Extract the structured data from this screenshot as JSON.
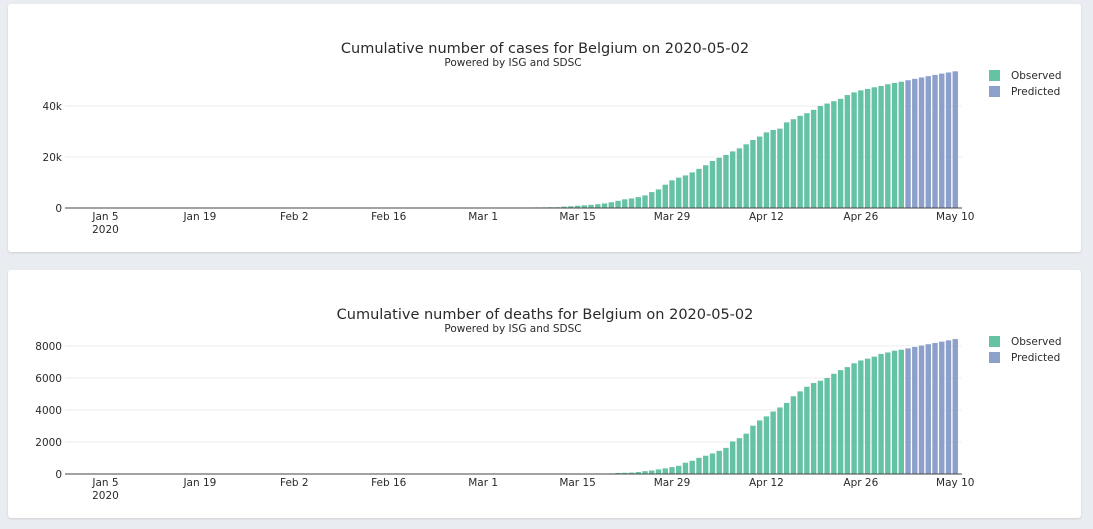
{
  "colors": {
    "observed": "#66c2a5",
    "predicted": "#8da0cb",
    "grid": "#eeeeee",
    "axis": "#444444"
  },
  "charts": [
    {
      "id": "cases",
      "title": "Cumulative number of cases for Belgium on 2020-05-02",
      "subtitle": "Powered by ISG and SDSC",
      "legend": [
        "Observed",
        "Predicted"
      ],
      "yticks": [
        {
          "v": 0,
          "label": "0"
        },
        {
          "v": 20000,
          "label": "20k"
        },
        {
          "v": 40000,
          "label": "40k"
        }
      ],
      "ylim": [
        0,
        54900
      ]
    },
    {
      "id": "deaths",
      "title": "Cumulative number of deaths for Belgium on 2020-05-02",
      "subtitle": "Powered by ISG and SDSC",
      "legend": [
        "Observed",
        "Predicted"
      ],
      "yticks": [
        {
          "v": 0,
          "label": "0"
        },
        {
          "v": 2000,
          "label": "2000"
        },
        {
          "v": 4000,
          "label": "4000"
        },
        {
          "v": 6000,
          "label": "6000"
        },
        {
          "v": 8000,
          "label": "8000"
        }
      ],
      "ylim": [
        0,
        8560
      ]
    }
  ],
  "chart_data": [
    {
      "type": "bar",
      "title": "Cumulative number of cases for Belgium on 2020-05-02",
      "subtitle": "Powered by ISG and SDSC",
      "xlim": [
        "2019-12-30",
        "2020-05-11"
      ],
      "xticks": [
        {
          "date": "2020-01-05",
          "label": "Jan 5",
          "sub": "2020"
        },
        {
          "date": "2020-01-19",
          "label": "Jan 19"
        },
        {
          "date": "2020-02-02",
          "label": "Feb 2"
        },
        {
          "date": "2020-02-16",
          "label": "Feb 16"
        },
        {
          "date": "2020-03-01",
          "label": "Mar 1"
        },
        {
          "date": "2020-03-15",
          "label": "Mar 15"
        },
        {
          "date": "2020-03-29",
          "label": "Mar 29"
        },
        {
          "date": "2020-04-12",
          "label": "Apr 12"
        },
        {
          "date": "2020-04-26",
          "label": "Apr 26"
        },
        {
          "date": "2020-05-10",
          "label": "May 10"
        }
      ],
      "legend_position": "top-right",
      "series": [
        {
          "name": "Observed",
          "start": "2020-03-01",
          "values": [
            2,
            8,
            13,
            23,
            50,
            109,
            169,
            200,
            239,
            267,
            314,
            314,
            559,
            689,
            886,
            1058,
            1243,
            1486,
            1795,
            2257,
            2815,
            3401,
            3743,
            4269,
            4937,
            6235,
            7284,
            9134,
            10836,
            11899,
            12775,
            13964,
            15348,
            16770,
            18431,
            19691,
            20814,
            22194,
            23403,
            24983,
            26667,
            28018,
            29647,
            30589,
            31119,
            33573,
            34809,
            36138,
            37183,
            38496,
            39983,
            40956,
            41889,
            42797,
            44293,
            45325,
            46134,
            46687,
            47334,
            47859,
            48519,
            49032,
            49517
          ]
        },
        {
          "name": "Predicted",
          "start": "2020-05-03",
          "values": [
            50100,
            50650,
            51200,
            51700,
            52200,
            52700,
            53150,
            53600
          ]
        }
      ]
    },
    {
      "type": "bar",
      "title": "Cumulative number of deaths for Belgium on 2020-05-02",
      "subtitle": "Powered by ISG and SDSC",
      "xlim": [
        "2019-12-30",
        "2020-05-11"
      ],
      "xticks": [
        {
          "date": "2020-01-05",
          "label": "Jan 5",
          "sub": "2020"
        },
        {
          "date": "2020-01-19",
          "label": "Jan 19"
        },
        {
          "date": "2020-02-02",
          "label": "Feb 2"
        },
        {
          "date": "2020-02-16",
          "label": "Feb 16"
        },
        {
          "date": "2020-03-01",
          "label": "Mar 1"
        },
        {
          "date": "2020-03-15",
          "label": "Mar 15"
        },
        {
          "date": "2020-03-29",
          "label": "Mar 29"
        },
        {
          "date": "2020-04-12",
          "label": "Apr 12"
        },
        {
          "date": "2020-04-26",
          "label": "Apr 26"
        },
        {
          "date": "2020-05-10",
          "label": "May 10"
        }
      ],
      "legend_position": "top-right",
      "series": [
        {
          "name": "Observed",
          "start": "2020-03-01",
          "values": [
            0,
            0,
            0,
            0,
            0,
            0,
            0,
            0,
            0,
            0,
            3,
            3,
            3,
            4,
            4,
            5,
            10,
            14,
            21,
            37,
            67,
            75,
            88,
            122,
            178,
            220,
            289,
            353,
            431,
            513,
            705,
            828,
            1011,
            1143,
            1283,
            1447,
            1632,
            2035,
            2240,
            2523,
            3019,
            3346,
            3600,
            3903,
            4157,
            4440,
            4857,
            5163,
            5453,
            5683,
            5828,
            5998,
            6262,
            6490,
            6679,
            6917,
            7094,
            7207,
            7331,
            7501,
            7594,
            7703,
            7765
          ]
        },
        {
          "name": "Predicted",
          "start": "2020-05-03",
          "values": [
            7850,
            7940,
            8030,
            8110,
            8190,
            8270,
            8350,
            8430
          ]
        }
      ]
    }
  ]
}
